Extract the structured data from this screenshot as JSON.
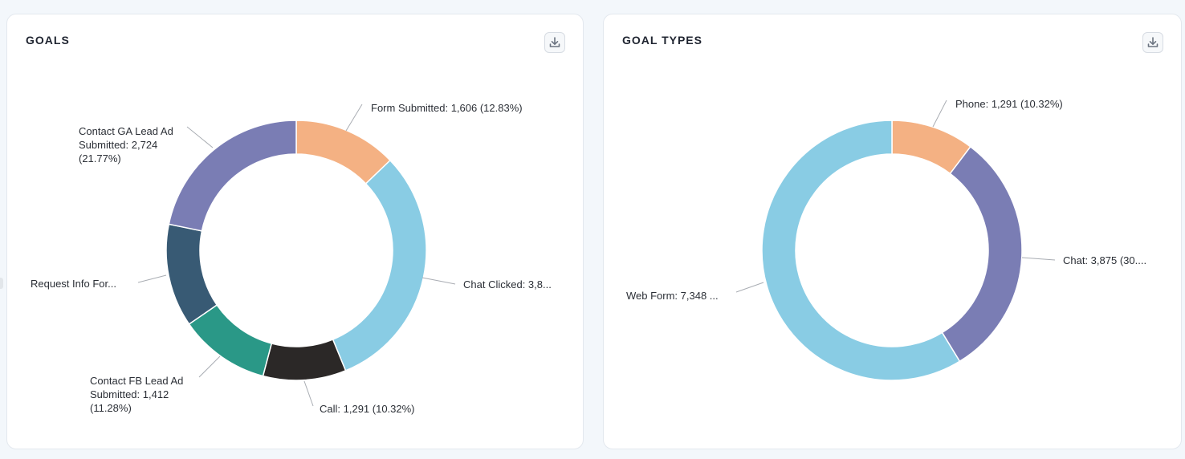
{
  "chart_data": [
    {
      "id": "goals",
      "type": "pie",
      "title": "GOALS",
      "slices": [
        {
          "name": "Form Submitted",
          "value": 1606,
          "label": [
            "Form Submitted: 1,606 (12.83%)"
          ],
          "color": "#f4b183"
        },
        {
          "name": "Chat Clicked",
          "value": 3875,
          "label": [
            "Chat Clicked: 3,8..."
          ],
          "color": "#89cce4"
        },
        {
          "name": "Call",
          "value": 1291,
          "label": [
            "Call: 1,291 (10.32%)"
          ],
          "color": "#2b2827"
        },
        {
          "name": "Contact FB Lead Ad Submitted",
          "value": 1412,
          "label": [
            "Contact FB Lead Ad",
            "Submitted: 1,412",
            "(11.28%)"
          ],
          "color": "#2a9887"
        },
        {
          "name": "Request Info For...",
          "value": 1605,
          "label": [
            "Request Info For..."
          ],
          "color": "#385a74"
        },
        {
          "name": "Contact GA Lead Ad Submitted",
          "value": 2724,
          "label": [
            "Contact GA Lead Ad",
            "Submitted: 2,724",
            "(21.77%)"
          ],
          "color": "#7a7db4"
        }
      ]
    },
    {
      "id": "types",
      "type": "pie",
      "title": "GOAL TYPES",
      "slices": [
        {
          "name": "Phone",
          "value": 1291,
          "label": [
            "Phone: 1,291 (10.32%)"
          ],
          "color": "#f4b183"
        },
        {
          "name": "Chat",
          "value": 3875,
          "label": [
            "Chat: 3,875 (30...."
          ],
          "color": "#7a7db4"
        },
        {
          "name": "Web Form",
          "value": 7348,
          "label": [
            "Web Form: 7,348 ..."
          ],
          "color": "#89cce4"
        }
      ]
    }
  ],
  "download_icon": "download-icon"
}
